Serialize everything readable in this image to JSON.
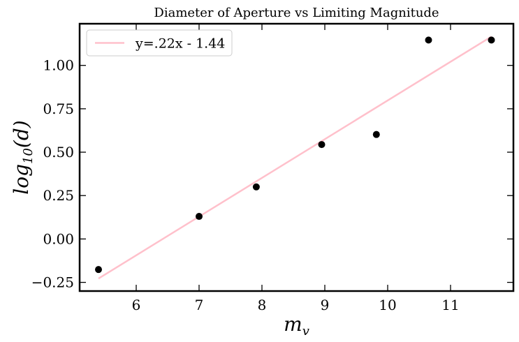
{
  "chart_data": {
    "type": "scatter",
    "title": "Diameter of Aperture vs Limiting Magnitude",
    "xlabel": "m",
    "xlabel_sub": "v",
    "ylabel_prefix": "log",
    "ylabel_sub": "10",
    "ylabel_suffix": "(d)",
    "xlim": [
      5.1,
      12.0
    ],
    "ylim": [
      -0.3,
      1.24
    ],
    "xticks": [
      6,
      7,
      8,
      9,
      10,
      11
    ],
    "yticks": [
      -0.25,
      0.0,
      0.25,
      0.5,
      0.75,
      1.0
    ],
    "ytick_labels": [
      "−0.25",
      "0.00",
      "0.25",
      "0.50",
      "0.75",
      "1.00"
    ],
    "legend_position": "top-left",
    "series": [
      {
        "type": "scatter",
        "color": "#000000",
        "x": [
          5.4,
          7.0,
          7.91,
          8.95,
          9.82,
          10.65,
          11.65
        ],
        "y": [
          -0.176,
          0.13,
          0.3,
          0.544,
          0.602,
          1.146,
          1.146
        ]
      },
      {
        "type": "line",
        "name": "y=.22x - 1.44",
        "color": "#ffc0cb",
        "x": [
          5.4,
          11.65
        ],
        "y": [
          -0.228,
          1.166
        ]
      }
    ]
  }
}
